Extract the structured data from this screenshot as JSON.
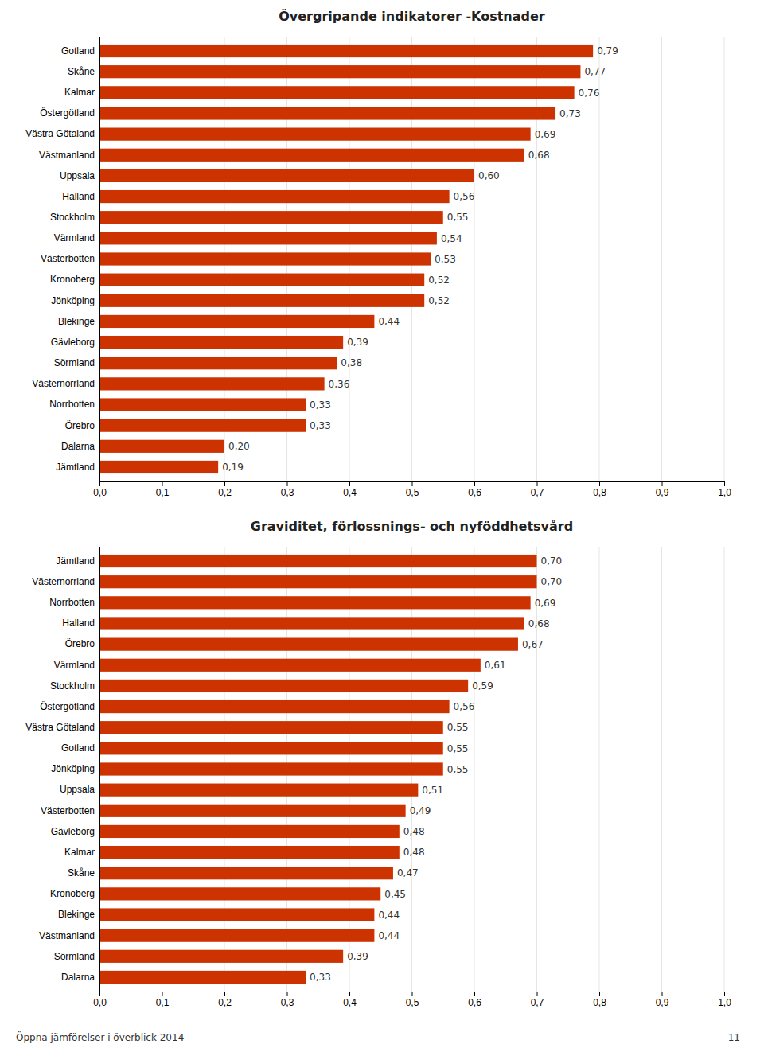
{
  "chart_data": [
    {
      "type": "bar",
      "orientation": "horizontal",
      "title": "Övergripande indikatorer -Kostnader",
      "categories": [
        "Gotland",
        "Skåne",
        "Kalmar",
        "Östergötland",
        "Västra Götaland",
        "Västmanland",
        "Uppsala",
        "Halland",
        "Stockholm",
        "Värmland",
        "Västerbotten",
        "Kronoberg",
        "Jönköping",
        "Blekinge",
        "Gävleborg",
        "Sörmland",
        "Västernorrland",
        "Norrbotten",
        "Örebro",
        "Dalarna",
        "Jämtland"
      ],
      "values": [
        0.79,
        0.77,
        0.76,
        0.73,
        0.69,
        0.68,
        0.6,
        0.56,
        0.55,
        0.54,
        0.53,
        0.52,
        0.52,
        0.44,
        0.39,
        0.38,
        0.36,
        0.33,
        0.33,
        0.2,
        0.19
      ],
      "value_labels": [
        "0,79",
        "0,77",
        "0,76",
        "0,73",
        "0,69",
        "0,68",
        "0,60",
        "0,56",
        "0,55",
        "0,54",
        "0,53",
        "0,52",
        "0,52",
        "0,44",
        "0,39",
        "0,38",
        "0,36",
        "0,33",
        "0,33",
        "0,20",
        "0,19"
      ],
      "color": "#CC3300",
      "xlim": [
        0.0,
        1.0
      ],
      "xticks": [
        {
          "value": 0.0,
          "label": "0,0"
        },
        {
          "value": 0.1,
          "label": "0,1"
        },
        {
          "value": 0.2,
          "label": "0,2"
        },
        {
          "value": 0.3,
          "label": "0,3"
        },
        {
          "value": 0.4,
          "label": "0,4"
        },
        {
          "value": 0.5,
          "label": "0,5"
        },
        {
          "value": 0.6,
          "label": "0,6"
        },
        {
          "value": 0.7,
          "label": "0,7"
        },
        {
          "value": 0.8,
          "label": "0,8"
        },
        {
          "value": 0.9,
          "label": "0,9"
        },
        {
          "value": 1.0,
          "label": "1,0"
        }
      ],
      "grid": true,
      "data_labels": true
    },
    {
      "type": "bar",
      "orientation": "horizontal",
      "title": "Graviditet, förlossnings- och nyföddhetsvård",
      "categories": [
        "Jämtland",
        "Västernorrland",
        "Norrbotten",
        "Halland",
        "Örebro",
        "Värmland",
        "Stockholm",
        "Östergötland",
        "Västra Götaland",
        "Gotland",
        "Jönköping",
        "Uppsala",
        "Västerbotten",
        "Gävleborg",
        "Kalmar",
        "Skåne",
        "Kronoberg",
        "Blekinge",
        "Västmanland",
        "Sörmland",
        "Dalarna"
      ],
      "values": [
        0.7,
        0.7,
        0.69,
        0.68,
        0.67,
        0.61,
        0.59,
        0.56,
        0.55,
        0.55,
        0.55,
        0.51,
        0.49,
        0.48,
        0.48,
        0.47,
        0.45,
        0.44,
        0.44,
        0.39,
        0.33
      ],
      "value_labels": [
        "0,70",
        "0,70",
        "0,69",
        "0,68",
        "0,67",
        "0,61",
        "0,59",
        "0,56",
        "0,55",
        "0,55",
        "0,55",
        "0,51",
        "0,49",
        "0,48",
        "0,48",
        "0,47",
        "0,45",
        "0,44",
        "0,44",
        "0,39",
        "0,33"
      ],
      "color": "#CC3300",
      "xlim": [
        0.0,
        1.0
      ],
      "xticks": [
        {
          "value": 0.0,
          "label": "0,0"
        },
        {
          "value": 0.1,
          "label": "0,1"
        },
        {
          "value": 0.2,
          "label": "0,2"
        },
        {
          "value": 0.3,
          "label": "0,3"
        },
        {
          "value": 0.4,
          "label": "0,4"
        },
        {
          "value": 0.5,
          "label": "0,5"
        },
        {
          "value": 0.6,
          "label": "0,6"
        },
        {
          "value": 0.7,
          "label": "0,7"
        },
        {
          "value": 0.8,
          "label": "0,8"
        },
        {
          "value": 0.9,
          "label": "0,9"
        },
        {
          "value": 1.0,
          "label": "1,0"
        }
      ],
      "grid": true,
      "data_labels": true,
      "annotations": [
        "Öppna jämförelser i överblick 2014",
        "11"
      ]
    }
  ]
}
